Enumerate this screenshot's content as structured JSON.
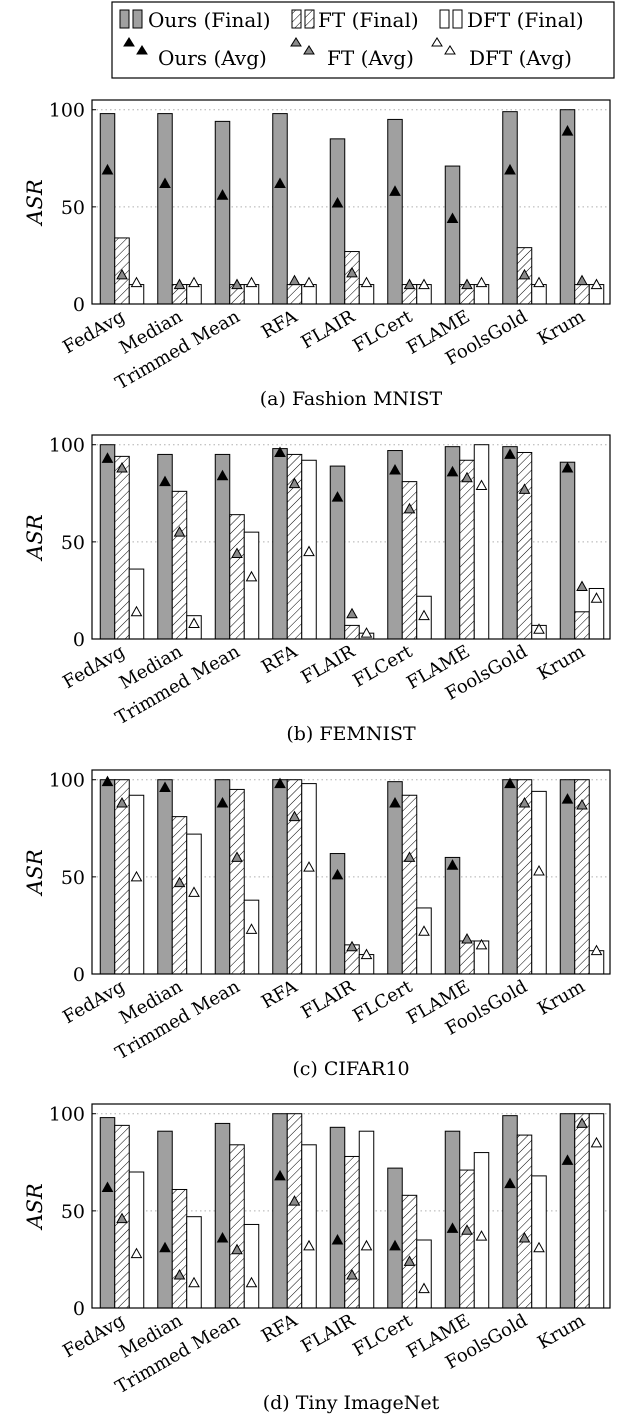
{
  "legend": {
    "entries": [
      {
        "key": "ours_final",
        "label": "Ours (Final)"
      },
      {
        "key": "ft_final",
        "label": "FT (Final)"
      },
      {
        "key": "dft_final",
        "label": "DFT (Final)"
      },
      {
        "key": "ours_avg",
        "label": "Ours (Avg)"
      },
      {
        "key": "ft_avg",
        "label": "FT (Avg)"
      },
      {
        "key": "dft_avg",
        "label": "DFT (Avg)"
      }
    ]
  },
  "colors": {
    "ours": "#a0a0a0",
    "ft_marker": "#8a8a8a",
    "dft": "#ffffff",
    "grid": "#b0b0b0"
  },
  "chart_data": [
    {
      "type": "bar",
      "caption": "(a) Fashion MNIST",
      "ylabel": "ASR",
      "ylim": [
        0,
        105
      ],
      "yticks": [
        0,
        50,
        100
      ],
      "grid": "horizontal dotted",
      "categories": [
        "FedAvg",
        "Median",
        "Trimmed Mean",
        "RFA",
        "FLAIR",
        "FLCert",
        "FLAME",
        "FoolsGold",
        "Krum"
      ],
      "series": [
        {
          "name": "Ours (Final)",
          "kind": "bar",
          "values": [
            98,
            98,
            94,
            98,
            85,
            95,
            71,
            99,
            100
          ]
        },
        {
          "name": "FT (Final)",
          "kind": "bar",
          "values": [
            34,
            10,
            10,
            10,
            27,
            10,
            10,
            29,
            10
          ]
        },
        {
          "name": "DFT (Final)",
          "kind": "bar",
          "values": [
            10,
            10,
            10,
            10,
            10,
            10,
            10,
            10,
            10
          ]
        },
        {
          "name": "Ours (Avg)",
          "kind": "marker",
          "values": [
            69,
            62,
            56,
            62,
            52,
            58,
            44,
            69,
            89
          ]
        },
        {
          "name": "FT (Avg)",
          "kind": "marker",
          "values": [
            15,
            10,
            10,
            12,
            16,
            10,
            10,
            15,
            12
          ]
        },
        {
          "name": "DFT (Avg)",
          "kind": "marker",
          "values": [
            11,
            11,
            11,
            11,
            11,
            10,
            11,
            11,
            10
          ]
        }
      ]
    },
    {
      "type": "bar",
      "caption": "(b) FEMNIST",
      "ylabel": "ASR",
      "ylim": [
        0,
        105
      ],
      "yticks": [
        0,
        50,
        100
      ],
      "grid": "horizontal dotted",
      "categories": [
        "FedAvg",
        "Median",
        "Trimmed Mean",
        "RFA",
        "FLAIR",
        "FLCert",
        "FLAME",
        "FoolsGold",
        "Krum"
      ],
      "series": [
        {
          "name": "Ours (Final)",
          "kind": "bar",
          "values": [
            100,
            95,
            95,
            98,
            89,
            97,
            99,
            99,
            91
          ]
        },
        {
          "name": "FT (Final)",
          "kind": "bar",
          "values": [
            94,
            76,
            64,
            95,
            7,
            81,
            92,
            96,
            14
          ]
        },
        {
          "name": "DFT (Final)",
          "kind": "bar",
          "values": [
            36,
            12,
            55,
            92,
            3,
            22,
            100,
            7,
            26
          ]
        },
        {
          "name": "Ours (Avg)",
          "kind": "marker",
          "values": [
            93,
            81,
            84,
            96,
            73,
            87,
            86,
            95,
            88
          ]
        },
        {
          "name": "FT (Avg)",
          "kind": "marker",
          "values": [
            88,
            55,
            44,
            80,
            13,
            67,
            83,
            77,
            27
          ]
        },
        {
          "name": "DFT (Avg)",
          "kind": "marker",
          "values": [
            14,
            8,
            32,
            45,
            3,
            12,
            79,
            5,
            21
          ]
        }
      ]
    },
    {
      "type": "bar",
      "caption": "(c) CIFAR10",
      "ylabel": "ASR",
      "ylim": [
        0,
        105
      ],
      "yticks": [
        0,
        50,
        100
      ],
      "grid": "horizontal dotted",
      "categories": [
        "FedAvg",
        "Median",
        "Trimmed Mean",
        "RFA",
        "FLAIR",
        "FLCert",
        "FLAME",
        "FoolsGold",
        "Krum"
      ],
      "series": [
        {
          "name": "Ours (Final)",
          "kind": "bar",
          "values": [
            100,
            100,
            100,
            100,
            62,
            99,
            60,
            100,
            100
          ]
        },
        {
          "name": "FT (Final)",
          "kind": "bar",
          "values": [
            100,
            81,
            95,
            100,
            15,
            92,
            17,
            100,
            100
          ]
        },
        {
          "name": "DFT (Final)",
          "kind": "bar",
          "values": [
            92,
            72,
            38,
            98,
            10,
            34,
            17,
            94,
            12
          ]
        },
        {
          "name": "Ours (Avg)",
          "kind": "marker",
          "values": [
            99,
            96,
            88,
            98,
            51,
            88,
            56,
            98,
            90
          ]
        },
        {
          "name": "FT (Avg)",
          "kind": "marker",
          "values": [
            88,
            47,
            60,
            81,
            14,
            60,
            18,
            88,
            87
          ]
        },
        {
          "name": "DFT (Avg)",
          "kind": "marker",
          "values": [
            50,
            42,
            23,
            55,
            10,
            22,
            15,
            53,
            12
          ]
        }
      ]
    },
    {
      "type": "bar",
      "caption": "(d) Tiny ImageNet",
      "ylabel": "ASR",
      "ylim": [
        0,
        105
      ],
      "yticks": [
        0,
        50,
        100
      ],
      "grid": "horizontal dotted",
      "categories": [
        "FedAvg",
        "Median",
        "Trimmed Mean",
        "RFA",
        "FLAIR",
        "FLCert",
        "FLAME",
        "FoolsGold",
        "Krum"
      ],
      "series": [
        {
          "name": "Ours (Final)",
          "kind": "bar",
          "values": [
            98,
            91,
            95,
            100,
            93,
            72,
            91,
            99,
            100
          ]
        },
        {
          "name": "FT (Final)",
          "kind": "bar",
          "values": [
            94,
            61,
            84,
            100,
            78,
            58,
            71,
            89,
            100
          ]
        },
        {
          "name": "DFT (Final)",
          "kind": "bar",
          "values": [
            70,
            47,
            43,
            84,
            91,
            35,
            80,
            68,
            100
          ]
        },
        {
          "name": "Ours (Avg)",
          "kind": "marker",
          "values": [
            62,
            31,
            36,
            68,
            35,
            32,
            41,
            64,
            76
          ]
        },
        {
          "name": "FT (Avg)",
          "kind": "marker",
          "values": [
            46,
            17,
            30,
            55,
            17,
            24,
            40,
            36,
            95
          ]
        },
        {
          "name": "DFT (Avg)",
          "kind": "marker",
          "values": [
            28,
            13,
            13,
            32,
            32,
            10,
            37,
            31,
            85
          ]
        }
      ]
    }
  ]
}
